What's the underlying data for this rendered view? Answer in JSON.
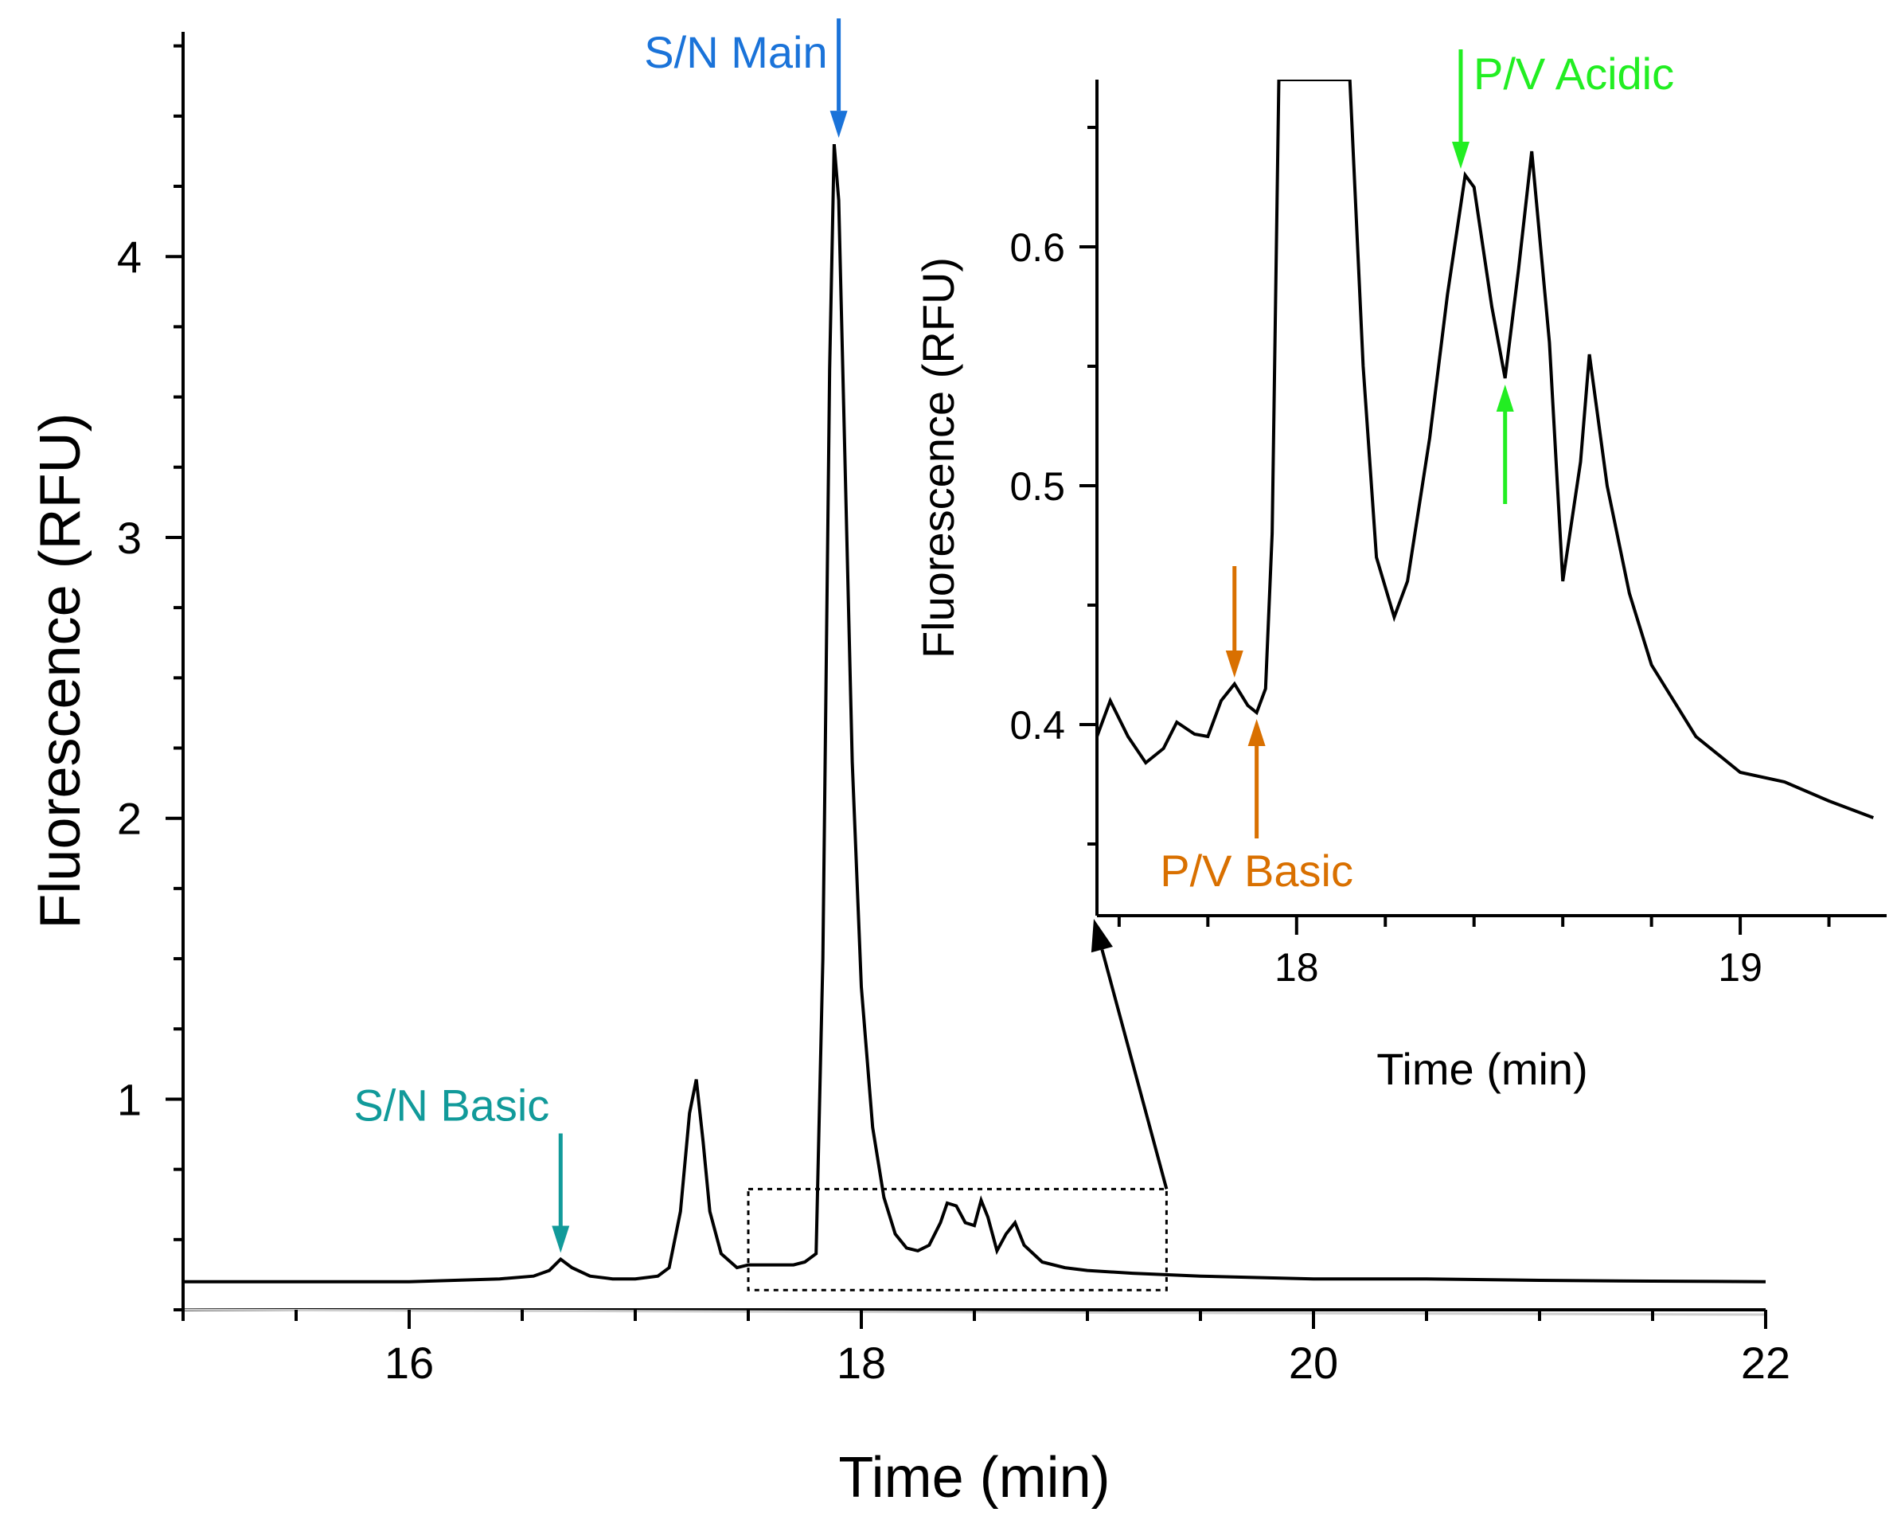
{
  "chart_data": [
    {
      "type": "line",
      "name": "main-electropherogram",
      "xlabel": "Time (min)",
      "ylabel": "Fluorescence (RFU)",
      "xlim": [
        15,
        22
      ],
      "ylim": [
        0.25,
        4.8
      ],
      "xticks": [
        16,
        18,
        20,
        22
      ],
      "xtick_labels": [
        "16",
        "18",
        "20",
        "22"
      ],
      "yticks": [
        1,
        2,
        3,
        4
      ],
      "ytick_labels": [
        "1",
        "2",
        "3",
        "4"
      ],
      "series": [
        {
          "name": "trace",
          "color": "#000000",
          "x": [
            15.0,
            16.0,
            16.4,
            16.55,
            16.62,
            16.67,
            16.72,
            16.8,
            16.9,
            17.0,
            17.1,
            17.15,
            17.2,
            17.24,
            17.27,
            17.3,
            17.33,
            17.38,
            17.45,
            17.5,
            17.6,
            17.7,
            17.75,
            17.8,
            17.83,
            17.86,
            17.88,
            17.9,
            17.93,
            17.96,
            18.0,
            18.05,
            18.1,
            18.15,
            18.2,
            18.25,
            18.3,
            18.35,
            18.38,
            18.42,
            18.46,
            18.5,
            18.53,
            18.56,
            18.6,
            18.64,
            18.68,
            18.72,
            18.8,
            18.9,
            19.0,
            19.2,
            19.5,
            20.0,
            20.5,
            21.0,
            21.5,
            22.0
          ],
          "y": [
            0.35,
            0.35,
            0.36,
            0.37,
            0.39,
            0.43,
            0.4,
            0.37,
            0.36,
            0.36,
            0.37,
            0.4,
            0.6,
            0.95,
            1.07,
            0.85,
            0.6,
            0.45,
            0.4,
            0.41,
            0.41,
            0.41,
            0.42,
            0.45,
            1.5,
            3.6,
            4.4,
            4.2,
            3.2,
            2.2,
            1.4,
            0.9,
            0.65,
            0.52,
            0.47,
            0.46,
            0.48,
            0.56,
            0.63,
            0.62,
            0.56,
            0.55,
            0.64,
            0.58,
            0.46,
            0.52,
            0.56,
            0.48,
            0.42,
            0.4,
            0.39,
            0.38,
            0.37,
            0.36,
            0.36,
            0.355,
            0.352,
            0.35
          ]
        }
      ],
      "annotations": [
        {
          "text": "S/N Main",
          "x": 17.9,
          "y": 4.4,
          "color": "#1a73d9",
          "direction": "down"
        },
        {
          "text": "S/N Basic",
          "x": 16.67,
          "y": 0.43,
          "color": "#119a9a",
          "direction": "down"
        }
      ],
      "zoom_box": {
        "x": [
          17.5,
          19.35
        ],
        "y": [
          0.32,
          0.68
        ]
      }
    },
    {
      "type": "line",
      "name": "inset-electropherogram",
      "xlabel": "Time (min)",
      "ylabel": "Fluorescence (RFU)",
      "xlim": [
        17.55,
        19.33
      ],
      "ylim": [
        0.32,
        0.67
      ],
      "xticks": [
        18,
        19
      ],
      "xtick_labels": [
        "18",
        "19"
      ],
      "yticks": [
        0.4,
        0.5,
        0.6
      ],
      "ytick_labels": [
        "0.4",
        "0.5",
        "0.6"
      ],
      "series": [
        {
          "name": "trace-zoom",
          "color": "#000000",
          "x": [
            17.55,
            17.58,
            17.62,
            17.66,
            17.7,
            17.73,
            17.77,
            17.8,
            17.83,
            17.86,
            17.89,
            17.91,
            17.93,
            17.945,
            17.96,
            18.12,
            18.15,
            18.18,
            18.22,
            18.25,
            18.3,
            18.34,
            18.38,
            18.4,
            18.44,
            18.47,
            18.5,
            18.53,
            18.57,
            18.6,
            18.64,
            18.66,
            18.7,
            18.75,
            18.8,
            18.9,
            19.0,
            19.1,
            19.2,
            19.3
          ],
          "y": [
            0.395,
            0.41,
            0.395,
            0.384,
            0.39,
            0.401,
            0.396,
            0.395,
            0.41,
            0.417,
            0.408,
            0.405,
            0.415,
            0.48,
            0.67,
            0.67,
            0.55,
            0.47,
            0.445,
            0.46,
            0.52,
            0.58,
            0.63,
            0.625,
            0.575,
            0.545,
            0.59,
            0.64,
            0.56,
            0.46,
            0.51,
            0.555,
            0.5,
            0.455,
            0.425,
            0.395,
            0.38,
            0.376,
            0.368,
            0.361
          ]
        }
      ],
      "annotations": [
        {
          "text": "P/V Acidic",
          "x": 18.37,
          "y": 0.63,
          "color": "#22ee22",
          "direction": "down"
        },
        {
          "text": "",
          "x": 18.47,
          "y": 0.545,
          "color": "#22ee22",
          "direction": "up"
        },
        {
          "text": "",
          "x": 17.86,
          "y": 0.417,
          "color": "#d97000",
          "direction": "down"
        },
        {
          "text": "P/V Basic",
          "x": 17.91,
          "y": 0.405,
          "color": "#d97000",
          "direction": "up"
        }
      ]
    }
  ]
}
